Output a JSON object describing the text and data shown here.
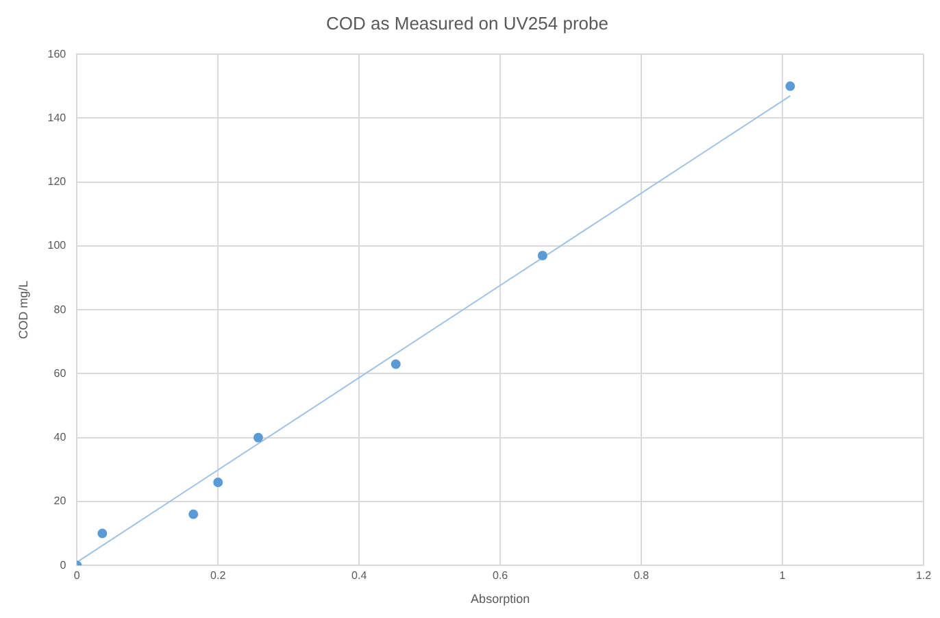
{
  "chart_data": {
    "type": "scatter",
    "title": "COD as Measured on UV254 probe",
    "xlabel": "Absorption",
    "ylabel": "COD mg/L",
    "x": [
      0,
      0.036,
      0.165,
      0.2,
      0.257,
      0.452,
      0.66,
      1.011
    ],
    "series": [
      {
        "color": "#5b9bd5",
        "values": [
          0,
          10,
          16,
          26,
          40,
          63,
          97,
          150
        ]
      },
      {
        "type": "line",
        "marker": "none",
        "color": "#9dc3e6",
        "x": [
          0,
          1.011
        ],
        "values": [
          1,
          147
        ]
      }
    ],
    "xlim": [
      0,
      1.2
    ],
    "xticks": [
      0,
      0.2,
      0.4,
      0.6,
      0.8,
      1,
      1.2
    ],
    "ylim": [
      0,
      160
    ],
    "yticks": [
      0,
      20,
      40,
      60,
      80,
      100,
      120,
      140,
      160
    ],
    "grid": true,
    "legend": false,
    "marker": "circle"
  }
}
